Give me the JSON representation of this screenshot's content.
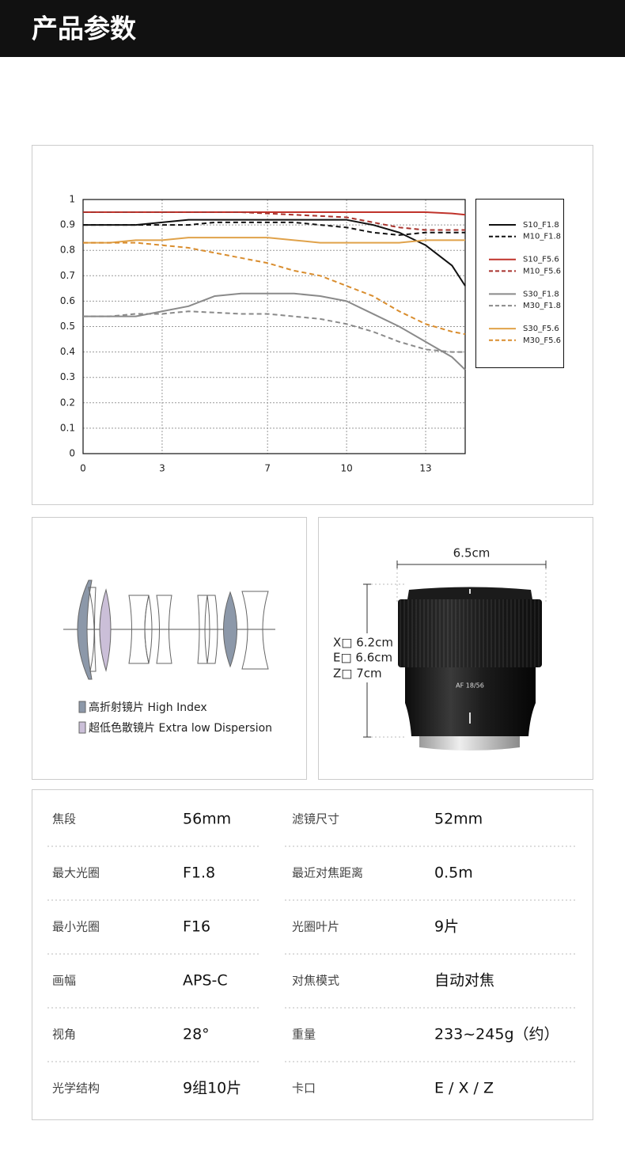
{
  "header": {
    "title": "产品参数"
  },
  "chart_data": {
    "type": "line",
    "x": [
      0,
      1,
      2,
      3,
      4,
      5,
      6,
      7,
      8,
      9,
      10,
      11,
      12,
      13,
      14,
      14.5
    ],
    "xlim": [
      0,
      14.5
    ],
    "xticks": [
      0,
      3,
      7,
      10,
      13
    ],
    "ylim": [
      0,
      1
    ],
    "yticks": [
      0,
      0.1,
      0.2,
      0.3,
      0.4,
      0.5,
      0.6,
      0.7,
      0.8,
      0.9,
      1
    ],
    "grid": true,
    "legend": "right",
    "series": [
      {
        "name": "S10_F1.8",
        "color": "#111111",
        "dash": false,
        "values": [
          0.9,
          0.9,
          0.9,
          0.91,
          0.92,
          0.92,
          0.92,
          0.92,
          0.92,
          0.92,
          0.92,
          0.9,
          0.87,
          0.82,
          0.74,
          0.66
        ]
      },
      {
        "name": "M10_F1.8",
        "color": "#111111",
        "dash": true,
        "values": [
          0.9,
          0.9,
          0.9,
          0.9,
          0.9,
          0.91,
          0.91,
          0.91,
          0.91,
          0.9,
          0.89,
          0.87,
          0.86,
          0.87,
          0.87,
          0.87
        ]
      },
      {
        "name": "S10_F5.6",
        "color": "#c0332b",
        "dash": false,
        "values": [
          0.95,
          0.95,
          0.95,
          0.95,
          0.95,
          0.95,
          0.95,
          0.95,
          0.95,
          0.95,
          0.95,
          0.95,
          0.95,
          0.95,
          0.945,
          0.94
        ]
      },
      {
        "name": "M10_F5.6",
        "color": "#a8322c",
        "dash": true,
        "values": [
          0.95,
          0.95,
          0.95,
          0.95,
          0.95,
          0.95,
          0.95,
          0.945,
          0.94,
          0.935,
          0.93,
          0.91,
          0.89,
          0.88,
          0.88,
          0.88
        ]
      },
      {
        "name": "S30_F1.8",
        "color": "#8a8a8a",
        "dash": false,
        "values": [
          0.54,
          0.54,
          0.54,
          0.56,
          0.58,
          0.62,
          0.63,
          0.63,
          0.63,
          0.62,
          0.6,
          0.55,
          0.5,
          0.44,
          0.38,
          0.33
        ]
      },
      {
        "name": "M30_F1.8",
        "color": "#8a8a8a",
        "dash": true,
        "values": [
          0.54,
          0.54,
          0.55,
          0.55,
          0.56,
          0.555,
          0.55,
          0.55,
          0.54,
          0.53,
          0.51,
          0.48,
          0.44,
          0.41,
          0.4,
          0.4
        ]
      },
      {
        "name": "S30_F5.6",
        "color": "#e0a24a",
        "dash": false,
        "values": [
          0.83,
          0.83,
          0.84,
          0.84,
          0.85,
          0.85,
          0.85,
          0.85,
          0.84,
          0.83,
          0.83,
          0.83,
          0.83,
          0.84,
          0.84,
          0.84
        ]
      },
      {
        "name": "M30_F5.6",
        "color": "#d98d2e",
        "dash": true,
        "values": [
          0.83,
          0.83,
          0.83,
          0.82,
          0.81,
          0.79,
          0.77,
          0.75,
          0.72,
          0.7,
          0.66,
          0.62,
          0.56,
          0.51,
          0.48,
          0.47
        ]
      }
    ]
  },
  "lens_diagram": {
    "legend": [
      "高折射镜片 High Index",
      "超低色散镜片 Extra low Dispersion"
    ]
  },
  "dimensions": {
    "width": "6.5cm",
    "heights": [
      "X□ 6.2cm",
      "E□ 6.6cm",
      "Z□ 7cm"
    ],
    "lens_marking": "AF 18/56"
  },
  "specs": {
    "rows": [
      [
        "焦段",
        "56mm",
        "滤镜尺寸",
        "52mm"
      ],
      [
        "最大光圈",
        "F1.8",
        "最近对焦距离",
        "0.5m"
      ],
      [
        "最小光圈",
        "F16",
        "光圈叶片",
        "9片"
      ],
      [
        "画幅",
        "APS-C",
        "对焦模式",
        "自动对焦"
      ],
      [
        "视角",
        "28°",
        "重量",
        "233~245g（约）"
      ],
      [
        "光学结构",
        "9组10片",
        "卡口",
        "E / X / Z"
      ]
    ]
  }
}
